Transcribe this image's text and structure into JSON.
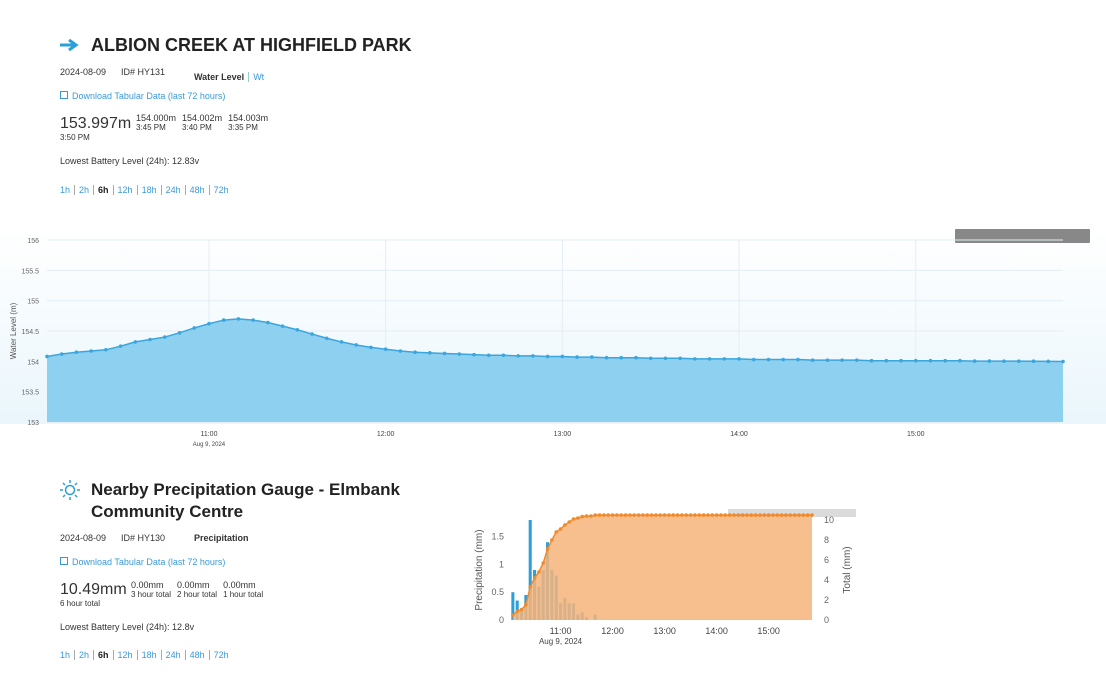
{
  "station": {
    "title": "ALBION CREEK AT HIGHFIELD PARK",
    "date": "2024-08-09",
    "id": "ID# HY131",
    "parameter": "Water Level",
    "alt_parameter": "Wt",
    "download": "Download Tabular Data (last 72 hours)",
    "current": {
      "value": "153.997m",
      "time": "3:50 PM"
    },
    "recent": [
      {
        "value": "154.000m",
        "time": "3:45 PM"
      },
      {
        "value": "154.002m",
        "time": "3:40 PM"
      },
      {
        "value": "154.003m",
        "time": "3:35 PM"
      }
    ],
    "battery": "Lowest Battery Level (24h): 12.83v",
    "ranges": [
      "1h",
      "2h",
      "6h",
      "12h",
      "18h",
      "24h",
      "48h",
      "72h"
    ],
    "selected_range": "6h"
  },
  "water_chart": {
    "type": "area",
    "y_label": "Water Level (m)",
    "x_sublabel": "Aug 9, 2024",
    "grid": true,
    "x": [
      "10:05",
      "10:10",
      "10:15",
      "10:20",
      "10:25",
      "10:30",
      "10:35",
      "10:40",
      "10:45",
      "10:50",
      "10:55",
      "11:00",
      "11:05",
      "11:10",
      "11:15",
      "11:20",
      "11:25",
      "11:30",
      "11:35",
      "11:40",
      "11:45",
      "11:50",
      "11:55",
      "12:00",
      "12:05",
      "12:10",
      "12:15",
      "12:20",
      "12:25",
      "12:30",
      "12:35",
      "12:40",
      "12:45",
      "12:50",
      "12:55",
      "13:00",
      "13:05",
      "13:10",
      "13:15",
      "13:20",
      "13:25",
      "13:30",
      "13:35",
      "13:40",
      "13:45",
      "13:50",
      "13:55",
      "14:00",
      "14:05",
      "14:10",
      "14:15",
      "14:20",
      "14:25",
      "14:30",
      "14:35",
      "14:40",
      "14:45",
      "14:50",
      "14:55",
      "15:00",
      "15:05",
      "15:10",
      "15:15",
      "15:20",
      "15:25",
      "15:30",
      "15:35",
      "15:40",
      "15:45",
      "15:50"
    ],
    "series": [
      {
        "color": "#3aa6dd",
        "values": [
          154.08,
          154.12,
          154.15,
          154.17,
          154.19,
          154.25,
          154.32,
          154.36,
          154.4,
          154.47,
          154.55,
          154.62,
          154.68,
          154.7,
          154.68,
          154.64,
          154.58,
          154.52,
          154.45,
          154.38,
          154.32,
          154.27,
          154.23,
          154.2,
          154.17,
          154.15,
          154.14,
          154.13,
          154.12,
          154.11,
          154.1,
          154.1,
          154.09,
          154.09,
          154.08,
          154.08,
          154.07,
          154.07,
          154.06,
          154.06,
          154.06,
          154.05,
          154.05,
          154.05,
          154.04,
          154.04,
          154.04,
          154.04,
          154.03,
          154.03,
          154.03,
          154.03,
          154.02,
          154.02,
          154.02,
          154.02,
          154.01,
          154.01,
          154.01,
          154.01,
          154.01,
          154.01,
          154.01,
          154.004,
          154.004,
          154.003,
          154.003,
          154.002,
          154.0,
          153.997
        ]
      }
    ],
    "xlim": [
      "10:05",
      "15:50"
    ],
    "xticks": [
      "11:00",
      "12:00",
      "13:00",
      "14:00",
      "15:00"
    ],
    "ylim": [
      153,
      156
    ],
    "yticks": [
      153,
      153.5,
      154,
      154.5,
      155,
      155.5,
      156
    ]
  },
  "gauge": {
    "title": "Nearby Precipitation Gauge - Elmbank Community Centre",
    "date": "2024-08-09",
    "id": "ID# HY130",
    "parameter": "Precipitation",
    "download": "Download Tabular Data (last 72 hours)",
    "current": {
      "value": "10.49mm",
      "time": "6 hour total"
    },
    "recent": [
      {
        "value": "0.00mm",
        "time": "3 hour total"
      },
      {
        "value": "0.00mm",
        "time": "2 hour total"
      },
      {
        "value": "0.00mm",
        "time": "1 hour total"
      }
    ],
    "battery": "Lowest Battery Level (24h): 12.8v",
    "ranges": [
      "1h",
      "2h",
      "6h",
      "12h",
      "18h",
      "24h",
      "48h",
      "72h"
    ],
    "selected_range": "6h"
  },
  "precip_chart": {
    "type": "bar",
    "y_label": "Precipitation (mm)",
    "y2_label": "Total (mm)",
    "x_sublabel": "Aug 9, 2024",
    "grid": false,
    "x": [
      "10:05",
      "10:10",
      "10:15",
      "10:20",
      "10:25",
      "10:30",
      "10:35",
      "10:40",
      "10:45",
      "10:50",
      "10:55",
      "11:00",
      "11:05",
      "11:10",
      "11:15",
      "11:20",
      "11:25",
      "11:30",
      "11:35",
      "11:40",
      "11:45",
      "11:50",
      "11:55",
      "12:00",
      "12:05",
      "12:10",
      "12:15",
      "12:20",
      "12:25",
      "12:30",
      "12:35",
      "12:40",
      "12:45",
      "12:50",
      "12:55",
      "13:00",
      "13:05",
      "13:10",
      "13:15",
      "13:20",
      "13:25",
      "13:30",
      "13:35",
      "13:40",
      "13:45",
      "13:50",
      "13:55",
      "14:00",
      "14:05",
      "14:10",
      "14:15",
      "14:20",
      "14:25",
      "14:30",
      "14:35",
      "14:40",
      "14:45",
      "14:50",
      "14:55",
      "15:00",
      "15:05",
      "15:10",
      "15:15",
      "15:20",
      "15:25",
      "15:30",
      "15:35",
      "15:40",
      "15:45",
      "15:50"
    ],
    "series": [
      {
        "type": "bar",
        "color": "#2a9fd8",
        "values": [
          0.5,
          0.35,
          0.2,
          0.45,
          1.8,
          0.9,
          0.6,
          0.9,
          1.4,
          0.9,
          0.8,
          0.3,
          0.4,
          0.3,
          0.3,
          0.1,
          0.14,
          0.05,
          0,
          0.1,
          0,
          0,
          0,
          0,
          0,
          0,
          0,
          0,
          0,
          0,
          0,
          0,
          0,
          0,
          0,
          0,
          0,
          0,
          0,
          0,
          0,
          0,
          0,
          0,
          0,
          0,
          0,
          0,
          0,
          0,
          0,
          0,
          0,
          0,
          0,
          0,
          0,
          0,
          0,
          0,
          0,
          0,
          0,
          0,
          0,
          0,
          0,
          0,
          0,
          0
        ]
      },
      {
        "type": "area",
        "axis": "y2",
        "color": "#f08a2c",
        "values": [
          0.5,
          0.85,
          1.05,
          1.5,
          3.3,
          4.2,
          4.8,
          5.7,
          7.1,
          8.0,
          8.8,
          9.1,
          9.5,
          9.8,
          10.1,
          10.2,
          10.34,
          10.39,
          10.39,
          10.49,
          10.49,
          10.49,
          10.49,
          10.49,
          10.49,
          10.49,
          10.49,
          10.49,
          10.49,
          10.49,
          10.49,
          10.49,
          10.49,
          10.49,
          10.49,
          10.49,
          10.49,
          10.49,
          10.49,
          10.49,
          10.49,
          10.49,
          10.49,
          10.49,
          10.49,
          10.49,
          10.49,
          10.49,
          10.49,
          10.49,
          10.49,
          10.49,
          10.49,
          10.49,
          10.49,
          10.49,
          10.49,
          10.49,
          10.49,
          10.49,
          10.49,
          10.49,
          10.49,
          10.49,
          10.49,
          10.49,
          10.49,
          10.49,
          10.49,
          10.49
        ]
      }
    ],
    "xlim": [
      "10:04",
      "15:50"
    ],
    "xticks": [
      "11:00",
      "12:00",
      "13:00",
      "14:00",
      "15:00"
    ],
    "ylim": [
      0,
      1.8
    ],
    "yticks": [
      0,
      0.5,
      1,
      1.5
    ],
    "y2lim": [
      0,
      10
    ],
    "y2ticks": [
      0,
      2,
      4,
      6,
      8,
      10
    ]
  }
}
